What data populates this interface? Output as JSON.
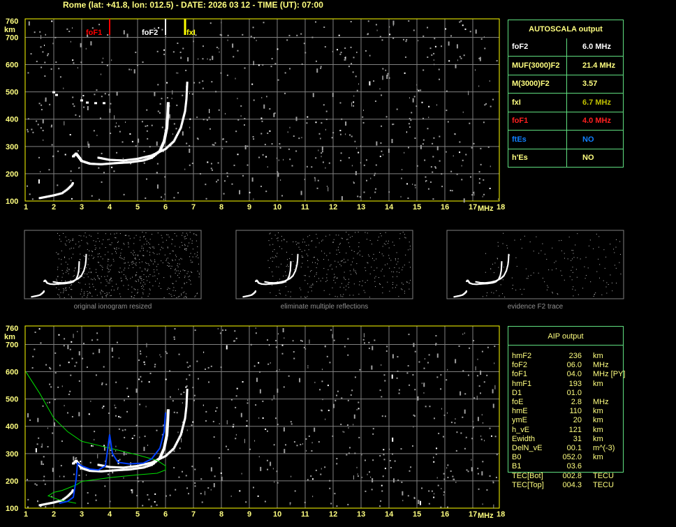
{
  "header": {
    "title": "Rome (lat: +41.8, lon: 012.5) - DATE: 2026 03 12 - TIME (UT): 07:00"
  },
  "colors": {
    "axis": "#ffff80",
    "grid": "#808080",
    "trace": "#ffffff",
    "foF1": "#ff0000",
    "fxI": "#ffff00",
    "profile": "#00e000",
    "model": "#0040ff",
    "table_border": "#60e080"
  },
  "chart_data": [
    {
      "type": "scatter",
      "xlabel": "MHz",
      "ylabel": "km",
      "xlim": [
        1,
        18
      ],
      "ylim": [
        100,
        760
      ],
      "xticks": [
        "1",
        "2",
        "3",
        "4",
        "5",
        "6",
        "7",
        "8",
        "9",
        "10",
        "11",
        "12",
        "13",
        "14",
        "15",
        "16",
        "17",
        "18"
      ],
      "yticks": [
        "100",
        "200",
        "300",
        "400",
        "500",
        "600",
        "700",
        "760"
      ],
      "grid": true,
      "markers": [
        {
          "label": "foF1",
          "freq": 4.0
        },
        {
          "label": "foF2",
          "freq": 6.0
        },
        {
          "label": "fxI",
          "freq": 6.7
        }
      ],
      "traces": {
        "E": [
          [
            1.5,
            112
          ],
          [
            1.8,
            118
          ],
          [
            2.0,
            122
          ],
          [
            2.3,
            130
          ],
          [
            2.5,
            145
          ],
          [
            2.65,
            160
          ],
          [
            2.7,
            170
          ]
        ],
        "O": [
          [
            2.7,
            265
          ],
          [
            2.8,
            275
          ],
          [
            2.9,
            262
          ],
          [
            3.0,
            248
          ],
          [
            3.3,
            238
          ],
          [
            3.7,
            236
          ],
          [
            4.2,
            240
          ],
          [
            4.7,
            243
          ],
          [
            5.2,
            250
          ],
          [
            5.5,
            260
          ],
          [
            5.8,
            285
          ],
          [
            5.95,
            320
          ],
          [
            6.05,
            370
          ],
          [
            6.08,
            420
          ],
          [
            6.1,
            465
          ]
        ],
        "X": [
          [
            3.6,
            260
          ],
          [
            4.0,
            252
          ],
          [
            4.5,
            250
          ],
          [
            5.0,
            256
          ],
          [
            5.5,
            268
          ],
          [
            6.0,
            292
          ],
          [
            6.3,
            320
          ],
          [
            6.55,
            370
          ],
          [
            6.7,
            430
          ],
          [
            6.75,
            475
          ],
          [
            6.78,
            540
          ]
        ],
        "multiple": [
          [
            3.0,
            470
          ],
          [
            3.2,
            462
          ],
          [
            3.5,
            460
          ],
          [
            3.8,
            460
          ],
          [
            2.1,
            490
          ],
          [
            2.0,
            500
          ]
        ]
      }
    },
    {
      "type": "line",
      "xlabel": "MHz",
      "ylabel": "km",
      "xlim": [
        1,
        18
      ],
      "ylim": [
        100,
        760
      ],
      "xticks": [
        "1",
        "2",
        "3",
        "4",
        "5",
        "6",
        "7",
        "8",
        "9",
        "10",
        "11",
        "12",
        "13",
        "14",
        "15",
        "16",
        "17",
        "18"
      ],
      "yticks": [
        "100",
        "200",
        "300",
        "400",
        "500",
        "600",
        "700",
        "760"
      ],
      "profile": [
        [
          1,
          600
        ],
        [
          1.5,
          520
        ],
        [
          2,
          430
        ],
        [
          2.5,
          380
        ],
        [
          3,
          345
        ],
        [
          4,
          320
        ],
        [
          5,
          295
        ],
        [
          5.7,
          275
        ],
        [
          6.0,
          255
        ],
        [
          6.0,
          240
        ],
        [
          5.7,
          228
        ],
        [
          5,
          222
        ],
        [
          4,
          212
        ],
        [
          3,
          198
        ],
        [
          2.8,
          185
        ],
        [
          2.3,
          165
        ],
        [
          2.0,
          158
        ],
        [
          1.8,
          145
        ],
        [
          2.2,
          130
        ],
        [
          2.6,
          122
        ],
        [
          2.8,
          118
        ]
      ],
      "model": [
        [
          2.2,
          118
        ],
        [
          2.5,
          125
        ],
        [
          2.7,
          140
        ],
        [
          2.8,
          205
        ],
        [
          2.85,
          265
        ],
        [
          3.0,
          255
        ],
        [
          3.3,
          243
        ],
        [
          3.6,
          240
        ],
        [
          3.85,
          255
        ],
        [
          4.0,
          370
        ],
        [
          4.1,
          300
        ],
        [
          4.3,
          268
        ],
        [
          4.7,
          262
        ],
        [
          5.2,
          265
        ],
        [
          5.5,
          280
        ],
        [
          5.8,
          320
        ],
        [
          5.95,
          380
        ],
        [
          6.0,
          450
        ]
      ]
    }
  ],
  "autoscala": {
    "title": "AUTOSCALA output",
    "rows": [
      {
        "k": "foF2",
        "v": "6.0 MHz",
        "kc": "#ffffff",
        "vc": "#ffffff"
      },
      {
        "k": "MUF(3000)F2",
        "v": "21.4 MHz",
        "kc": "#ffff80",
        "vc": "#ffff80"
      },
      {
        "k": "M(3000)F2",
        "v": "3.57",
        "kc": "#ffff80",
        "vc": "#ffff80"
      },
      {
        "k": "fxI",
        "v": "6.7 MHz",
        "kc": "#ffff80",
        "vc": "#c0c000"
      },
      {
        "k": "foF1",
        "v": "4.0 MHz",
        "kc": "#ff2020",
        "vc": "#ff2020"
      },
      {
        "k": "ftEs",
        "v": "NO",
        "kc": "#1080ff",
        "vc": "#1080ff"
      },
      {
        "k": "h'Es",
        "v": "NO",
        "kc": "#ffff80",
        "vc": "#ffff80"
      }
    ]
  },
  "thumbnails": [
    {
      "caption": "original ionogram resized"
    },
    {
      "caption": "eliminate multiple reflections"
    },
    {
      "caption": "evidence F2 trace"
    }
  ],
  "aip": {
    "title": "AIP output",
    "rows": [
      [
        "hmF2",
        "236",
        "km"
      ],
      [
        "foF2",
        "06.0",
        "MHz   [PY]"
      ],
      [
        "foF1",
        "04.0",
        "MHz   [PY]"
      ],
      [
        "hmF1",
        "193",
        "km"
      ],
      [
        "D1",
        "01.0",
        ""
      ],
      [
        "foE",
        "2.8",
        "MHz"
      ],
      [
        "hmE",
        "110",
        "km"
      ],
      [
        "ymE",
        "20",
        "km"
      ],
      [
        "h_vE",
        "121",
        "km"
      ],
      [
        "Ewidth",
        "31",
        "km"
      ],
      [
        "DelN_vE",
        "00.1",
        "m^(-3)"
      ],
      [
        "B0",
        "052.0",
        "km"
      ],
      [
        "B1",
        "03.6",
        ""
      ],
      [
        "TEC[Bot]",
        "002.8",
        "TECU"
      ],
      [
        "TEC[Top]",
        "004.3",
        "TECU"
      ]
    ]
  }
}
